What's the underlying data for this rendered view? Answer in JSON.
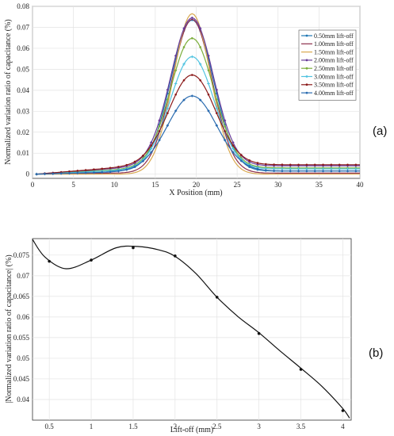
{
  "chart_data": [
    {
      "type": "line",
      "panel_label": "(a)",
      "xlabel": "X Position (mm)",
      "ylabel": "Normalized variation ratio of capacitance (%)",
      "xlim": [
        0,
        40
      ],
      "ylim": [
        -0.002,
        0.08
      ],
      "xticks": [
        0,
        5,
        10,
        15,
        20,
        25,
        30,
        35,
        40
      ],
      "yticks": [
        0,
        0.01,
        0.02,
        0.03,
        0.04,
        0.05,
        0.06,
        0.07,
        0.08
      ],
      "grid": true,
      "legend_position": "top-right",
      "series": [
        {
          "name": "0.50mm lift-off",
          "color": "#1f77b4",
          "peak": 0.0735,
          "sigma": 2.6,
          "baseline": 0.0015,
          "baseline_x0": 5,
          "marker": "circle"
        },
        {
          "name": "1.00mm lift-off",
          "color": "#8c2d4a",
          "peak": 0.0738,
          "sigma": 2.45,
          "baseline": 0.0005,
          "baseline_x0": 9,
          "marker": "none"
        },
        {
          "name": "1.50mm lift-off",
          "color": "#d9a84e",
          "peak": 0.0765,
          "sigma": 2.3,
          "baseline": 0.0,
          "baseline_x0": 20,
          "marker": "none"
        },
        {
          "name": "2.00mm lift-off",
          "color": "#6a3d9a",
          "peak": 0.0745,
          "sigma": 2.6,
          "baseline": 0.004,
          "baseline_x0": 14,
          "marker": "diamond"
        },
        {
          "name": "2.50mm lift-off",
          "color": "#7cae3c",
          "peak": 0.0648,
          "sigma": 2.65,
          "baseline": 0.003,
          "baseline_x0": 14,
          "marker": "circle"
        },
        {
          "name": "3.00mm lift-off",
          "color": "#4fc3e0",
          "peak": 0.056,
          "sigma": 2.7,
          "baseline": 0.0025,
          "baseline_x0": 14,
          "marker": "star"
        },
        {
          "name": "3.50mm lift-off",
          "color": "#8b1a1a",
          "peak": 0.0473,
          "sigma": 2.85,
          "baseline": 0.0045,
          "baseline_x0": 14,
          "marker": "circle"
        },
        {
          "name": "4.00mm lift-off",
          "color": "#2b6cb0",
          "peak": 0.0373,
          "sigma": 3.0,
          "baseline": 0.0015,
          "baseline_x0": 14,
          "marker": "diamond"
        }
      ],
      "peak_x": 19.5
    },
    {
      "type": "scatter",
      "panel_label": "(b)",
      "xlabel": "Lift-off (mm)",
      "ylabel": "|Normalized variation ratio of capacitance| (%)",
      "xlim": [
        0.3,
        4.1
      ],
      "ylim": [
        0.035,
        0.079
      ],
      "xticks": [
        0.5,
        1,
        1.5,
        2,
        2.5,
        3,
        3.5,
        4
      ],
      "yticks": [
        0.04,
        0.045,
        0.05,
        0.055,
        0.06,
        0.065,
        0.07,
        0.075
      ],
      "grid": true,
      "points": [
        {
          "x": 0.5,
          "y": 0.0735
        },
        {
          "x": 1.0,
          "y": 0.0738
        },
        {
          "x": 1.5,
          "y": 0.0768
        },
        {
          "x": 2.0,
          "y": 0.0748
        },
        {
          "x": 2.5,
          "y": 0.0648
        },
        {
          "x": 3.0,
          "y": 0.056
        },
        {
          "x": 3.5,
          "y": 0.0473
        },
        {
          "x": 4.0,
          "y": 0.0373
        }
      ],
      "fit_curve": [
        {
          "x": 0.3,
          "y": 0.0788
        },
        {
          "x": 0.45,
          "y": 0.0745
        },
        {
          "x": 0.7,
          "y": 0.0717
        },
        {
          "x": 1.0,
          "y": 0.0738
        },
        {
          "x": 1.3,
          "y": 0.0768
        },
        {
          "x": 1.55,
          "y": 0.0771
        },
        {
          "x": 1.8,
          "y": 0.0763
        },
        {
          "x": 2.0,
          "y": 0.0747
        },
        {
          "x": 2.25,
          "y": 0.0705
        },
        {
          "x": 2.5,
          "y": 0.0648
        },
        {
          "x": 2.75,
          "y": 0.0601
        },
        {
          "x": 3.0,
          "y": 0.0562
        },
        {
          "x": 3.25,
          "y": 0.0518
        },
        {
          "x": 3.5,
          "y": 0.0476
        },
        {
          "x": 3.75,
          "y": 0.0432
        },
        {
          "x": 4.0,
          "y": 0.0378
        },
        {
          "x": 4.08,
          "y": 0.0355
        }
      ]
    }
  ]
}
